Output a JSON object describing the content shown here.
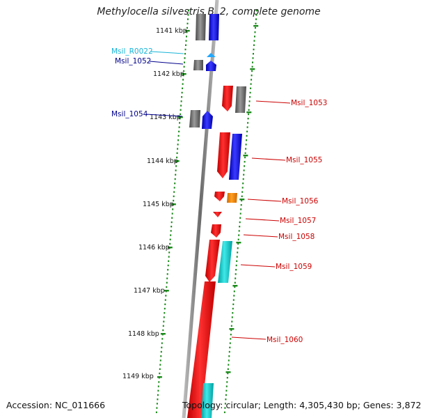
{
  "title": "Methylocella silvestris BL2, complete genome",
  "footer": {
    "accession": "Accession: NC_011666",
    "stats": "Topology: circular; Length: 4,305,430 bp; Genes: 3,872"
  },
  "colors": {
    "backbone": "#8a8a8a",
    "tick": "#1a8a1a",
    "gray_gene": "#6e6e6e",
    "blue_gene": "#0000e0",
    "red_gene": "#ee0000",
    "orange_gene": "#f08000",
    "cyan_gene": "#10c8c8",
    "rna": "#20a8ff",
    "label_red": "#cc0000",
    "label_blue": "#00008b",
    "label_cyan": "#18b4d8"
  },
  "kbp_labels": [
    "1141 kbp",
    "1142 kbp",
    "1143 kbp",
    "1144 kbp",
    "1145 kbp",
    "1146 kbp",
    "1147 kbp",
    "1148 kbp",
    "1149 kbp"
  ],
  "gene_labels": {
    "left": [
      {
        "text": "Msil_R0022",
        "color": "cyan"
      },
      {
        "text": "Msil_1052",
        "color": "blue"
      },
      {
        "text": "Msil_1054",
        "color": "blue"
      }
    ],
    "right": [
      {
        "text": "Msil_1053",
        "color": "red"
      },
      {
        "text": "Msil_1055",
        "color": "red"
      },
      {
        "text": "Msil_1056",
        "color": "red"
      },
      {
        "text": "Msil_1057",
        "color": "red"
      },
      {
        "text": "Msil_1058",
        "color": "red"
      },
      {
        "text": "Msil_1059",
        "color": "red"
      },
      {
        "text": "Msil_1060",
        "color": "red"
      }
    ]
  }
}
